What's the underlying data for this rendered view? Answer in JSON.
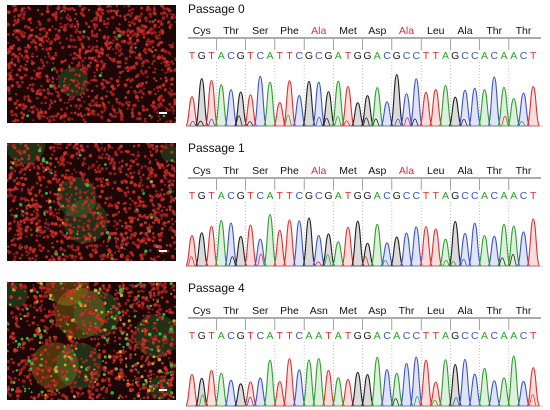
{
  "colors": {
    "A": "#2ca02c",
    "C": "#3c55c8",
    "G": "#202020",
    "T": "#e03030",
    "mutant_codon": "#cc3344",
    "scale_bar": "#ffffff"
  },
  "panels": [
    {
      "title": "Passage 0",
      "codons": [
        {
          "aa": "Cys",
          "mutant": false
        },
        {
          "aa": "Thr",
          "mutant": false
        },
        {
          "aa": "Ser",
          "mutant": false
        },
        {
          "aa": "Phe",
          "mutant": false
        },
        {
          "aa": "Ala",
          "mutant": true
        },
        {
          "aa": "Met",
          "mutant": false
        },
        {
          "aa": "Asp",
          "mutant": false
        },
        {
          "aa": "Ala",
          "mutant": true
        },
        {
          "aa": "Leu",
          "mutant": false
        },
        {
          "aa": "Ala",
          "mutant": false
        },
        {
          "aa": "Thr",
          "mutant": false
        },
        {
          "aa": "Thr",
          "mutant": false
        }
      ],
      "sequence": "TGTACGTCATTCGCGATGGACGCCTTAGCCACAACT",
      "image": {
        "green_level": 0.05,
        "yellow_level": 0.0
      }
    },
    {
      "title": "Passage 1",
      "codons": [
        {
          "aa": "Cys",
          "mutant": false
        },
        {
          "aa": "Thr",
          "mutant": false
        },
        {
          "aa": "Ser",
          "mutant": false
        },
        {
          "aa": "Phe",
          "mutant": false
        },
        {
          "aa": "Ala",
          "mutant": true
        },
        {
          "aa": "Met",
          "mutant": false
        },
        {
          "aa": "Asp",
          "mutant": false
        },
        {
          "aa": "Ala",
          "mutant": true
        },
        {
          "aa": "Leu",
          "mutant": false
        },
        {
          "aa": "Ala",
          "mutant": false
        },
        {
          "aa": "Thr",
          "mutant": false
        },
        {
          "aa": "Thr",
          "mutant": false
        }
      ],
      "sequence": "TGTACGTCATTCGCGATGGACGCCTTAGCCACAACT",
      "image": {
        "green_level": 0.25,
        "yellow_level": 0.05
      }
    },
    {
      "title": "Passage 4",
      "codons": [
        {
          "aa": "Cys",
          "mutant": false
        },
        {
          "aa": "Thr",
          "mutant": false
        },
        {
          "aa": "Ser",
          "mutant": false
        },
        {
          "aa": "Phe",
          "mutant": false
        },
        {
          "aa": "Asn",
          "mutant": false
        },
        {
          "aa": "Met",
          "mutant": false
        },
        {
          "aa": "Asp",
          "mutant": false
        },
        {
          "aa": "Thr",
          "mutant": false
        },
        {
          "aa": "Leu",
          "mutant": false
        },
        {
          "aa": "Ala",
          "mutant": false
        },
        {
          "aa": "Thr",
          "mutant": false
        },
        {
          "aa": "Thr",
          "mutant": false
        }
      ],
      "sequence": "TGTACGTCATTCAATATGGACACCTTAGCCACAACT",
      "image": {
        "green_level": 0.6,
        "yellow_level": 0.5
      }
    }
  ]
}
